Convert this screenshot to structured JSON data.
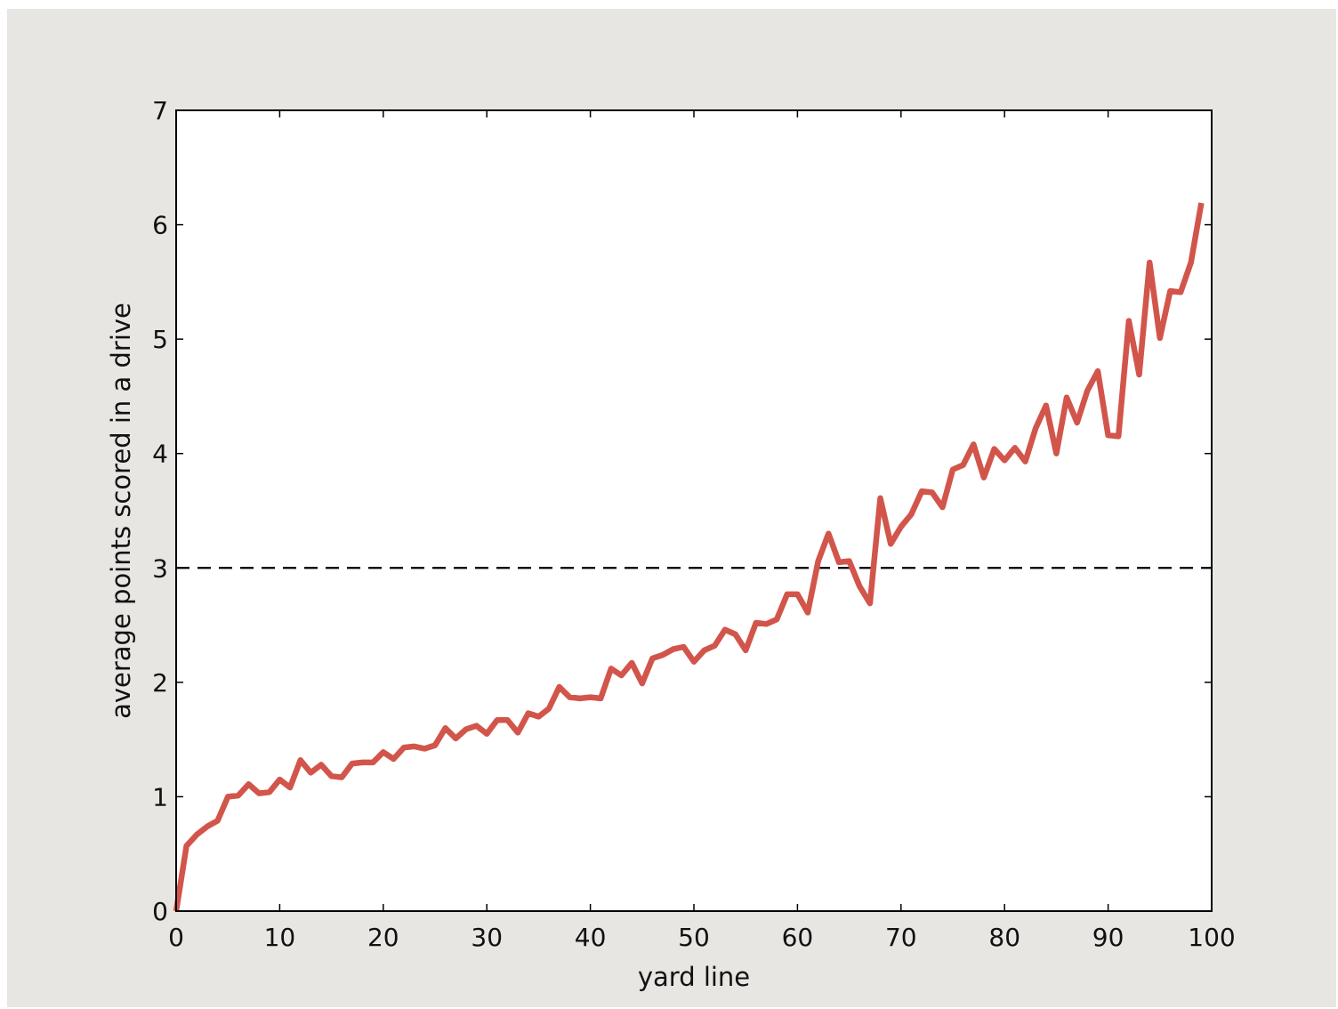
{
  "chart_data": {
    "type": "line",
    "title": "",
    "xlabel": "yard line",
    "ylabel": "average points scored in a drive",
    "xlim": [
      0,
      100
    ],
    "ylim": [
      0,
      7
    ],
    "xticks": [
      0,
      10,
      20,
      30,
      40,
      50,
      60,
      70,
      80,
      90,
      100
    ],
    "yticks": [
      0,
      1,
      2,
      3,
      4,
      5,
      6,
      7
    ],
    "grid": false,
    "legend": "none",
    "reference_line": {
      "y": 3,
      "style": "dashed",
      "color": "#000000"
    },
    "series": [
      {
        "color": "#d2554b",
        "x": [
          0,
          1,
          2,
          3,
          4,
          5,
          6,
          7,
          8,
          9,
          10,
          11,
          12,
          13,
          14,
          15,
          16,
          17,
          18,
          19,
          20,
          21,
          22,
          23,
          24,
          25,
          26,
          27,
          28,
          29,
          30,
          31,
          32,
          33,
          34,
          35,
          36,
          37,
          38,
          39,
          40,
          41,
          42,
          43,
          44,
          45,
          46,
          47,
          48,
          49,
          50,
          51,
          52,
          53,
          54,
          55,
          56,
          57,
          58,
          59,
          60,
          61,
          62,
          63,
          64,
          65,
          66,
          67,
          68,
          69,
          70,
          71,
          72,
          73,
          74,
          75,
          76,
          77,
          78,
          79,
          80,
          81,
          82,
          83,
          84,
          85,
          86,
          87,
          88,
          89,
          90,
          91,
          92,
          93,
          94,
          95,
          96,
          97,
          98,
          99
        ],
        "y": [
          0.0,
          0.57,
          0.67,
          0.74,
          0.79,
          1.0,
          1.01,
          1.11,
          1.03,
          1.04,
          1.15,
          1.08,
          1.32,
          1.21,
          1.28,
          1.18,
          1.17,
          1.29,
          1.3,
          1.3,
          1.39,
          1.33,
          1.43,
          1.44,
          1.42,
          1.45,
          1.6,
          1.51,
          1.59,
          1.62,
          1.55,
          1.67,
          1.67,
          1.56,
          1.73,
          1.7,
          1.77,
          1.96,
          1.87,
          1.86,
          1.87,
          1.86,
          2.12,
          2.06,
          2.17,
          1.99,
          2.21,
          2.24,
          2.29,
          2.31,
          2.18,
          2.28,
          2.32,
          2.46,
          2.42,
          2.28,
          2.52,
          2.51,
          2.55,
          2.77,
          2.77,
          2.61,
          3.06,
          3.3,
          3.05,
          3.06,
          2.84,
          2.69,
          3.61,
          3.21,
          3.36,
          3.47,
          3.67,
          3.66,
          3.53,
          3.86,
          3.9,
          4.08,
          3.79,
          4.04,
          3.94,
          4.05,
          3.93,
          4.22,
          4.42,
          4.0,
          4.49,
          4.27,
          4.55,
          4.72,
          4.16,
          4.15,
          5.16,
          4.69,
          5.67,
          5.01,
          5.42,
          5.41,
          5.67,
          6.19
        ]
      }
    ]
  }
}
